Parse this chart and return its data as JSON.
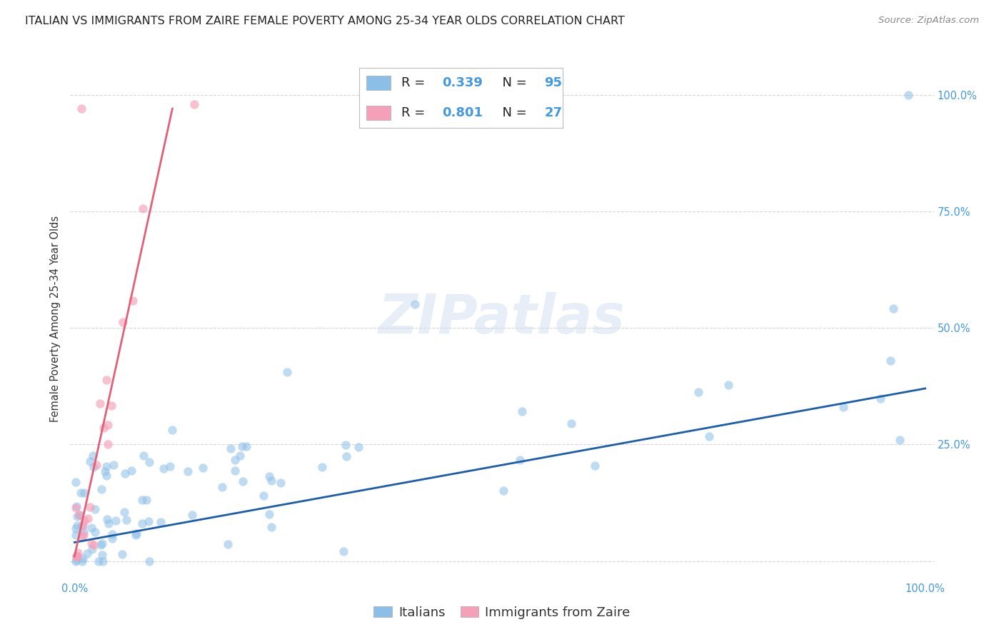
{
  "title": "ITALIAN VS IMMIGRANTS FROM ZAIRE FEMALE POVERTY AMONG 25-34 YEAR OLDS CORRELATION CHART",
  "source": "Source: ZipAtlas.com",
  "ylabel": "Female Poverty Among 25-34 Year Olds",
  "watermark": "ZIPatlas",
  "legend_italian_r": "R = 0.339",
  "legend_italian_n": "N = 95",
  "legend_zaire_r": "R = 0.801",
  "legend_zaire_n": "N = 27",
  "color_italian": "#8BBFE8",
  "color_zaire": "#F4A0B8",
  "color_italian_line": "#1A5DAD",
  "color_zaire_line": "#E0607A",
  "bg_color": "#ffffff",
  "italian_line_x0": 0.0,
  "italian_line_x1": 1.0,
  "italian_line_y0": 0.04,
  "italian_line_y1": 0.37,
  "zaire_line_x0": 0.0,
  "zaire_line_x1": 0.115,
  "zaire_line_y0": 0.01,
  "zaire_line_y1": 0.97,
  "xlim_min": -0.005,
  "xlim_max": 1.01,
  "ylim_min": -0.04,
  "ylim_max": 1.08,
  "marker_size": 80,
  "alpha_italian": 0.55,
  "alpha_zaire": 0.65,
  "title_fontsize": 11.5,
  "label_fontsize": 10.5,
  "tick_fontsize": 10.5,
  "legend_fontsize": 13,
  "right_tick_color": "#4499DD",
  "bottom_tick_color": "#4499DD",
  "grid_color": "#CCCCCC",
  "seed": 12
}
